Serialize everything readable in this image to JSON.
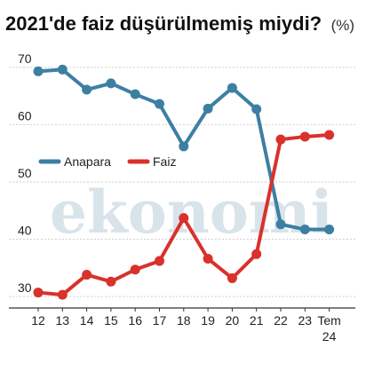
{
  "title": "2021'de faiz düşürülmemiş miydi?",
  "unit": "(%)",
  "watermark": "ekonomi",
  "chart_data": {
    "type": "line",
    "title": "2021'de faiz düşürülmemiş miydi?",
    "unit": "(%)",
    "categories": [
      "12",
      "13",
      "14",
      "15",
      "16",
      "17",
      "18",
      "19",
      "20",
      "21",
      "22",
      "23",
      "Tem 24"
    ],
    "category_labels": [
      [
        "12"
      ],
      [
        "13"
      ],
      [
        "14"
      ],
      [
        "15"
      ],
      [
        "16"
      ],
      [
        "17"
      ],
      [
        "18"
      ],
      [
        "19"
      ],
      [
        "20"
      ],
      [
        "21"
      ],
      [
        "22"
      ],
      [
        "23"
      ],
      [
        "Tem",
        "24"
      ]
    ],
    "y_ticks": [
      "70",
      "60",
      "50",
      "40",
      "30"
    ],
    "ylim": [
      28,
      74
    ],
    "grid": true,
    "legend_position": "middle-left",
    "series": [
      {
        "name": "Anapara",
        "color": "#3d7fa3",
        "values": [
          69.3,
          69.6,
          66.1,
          67.2,
          65.3,
          63.6,
          56.2,
          62.8,
          66.4,
          62.7,
          42.6,
          41.7,
          41.7
        ]
      },
      {
        "name": "Faiz",
        "color": "#d9312b",
        "values": [
          30.7,
          30.3,
          33.8,
          32.6,
          34.7,
          36.2,
          43.7,
          36.6,
          33.2,
          37.4,
          57.4,
          57.9,
          58.2
        ]
      }
    ]
  }
}
